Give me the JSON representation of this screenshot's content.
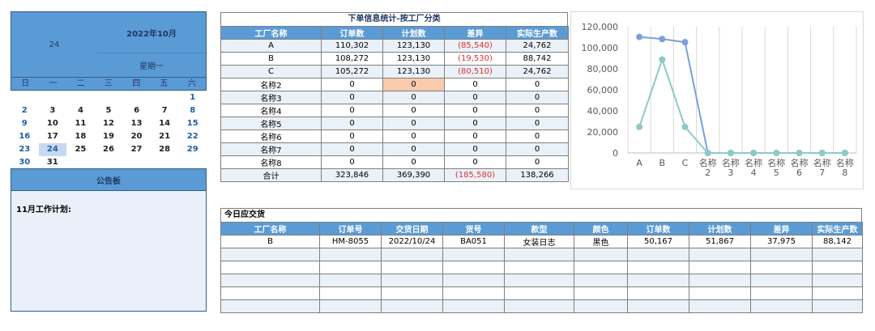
{
  "calendar": {
    "day": "24",
    "month_title": "2022年10月",
    "weekday": "星期一",
    "weekdays": [
      "日",
      "一",
      "二",
      "三",
      "四",
      "五",
      "六"
    ],
    "weeks": [
      [
        "",
        "",
        "",
        "",
        "",
        "",
        "1"
      ],
      [
        "2",
        "3",
        "4",
        "5",
        "6",
        "7",
        "8"
      ],
      [
        "9",
        "10",
        "11",
        "12",
        "13",
        "14",
        "15"
      ],
      [
        "16",
        "17",
        "18",
        "19",
        "20",
        "21",
        "22"
      ],
      [
        "23",
        "24",
        "25",
        "26",
        "27",
        "28",
        "29"
      ],
      [
        "30",
        "31",
        "",
        "",
        "",
        "",
        ""
      ]
    ],
    "today": "24"
  },
  "board": {
    "title": "公告板",
    "content": "11月工作计划:"
  },
  "stats_table": {
    "title": "下单信息统计-按工厂分类",
    "headers": [
      "工厂名称",
      "订单数",
      "计划数",
      "差异",
      "实际生产数"
    ],
    "rows": [
      [
        "A",
        "110,302",
        "123,130",
        "(85,540)",
        "24,762"
      ],
      [
        "B",
        "108,272",
        "123,130",
        "(19,530)",
        "88,742"
      ],
      [
        "C",
        "105,272",
        "123,130",
        "(80,510)",
        "24,762"
      ],
      [
        "名称2",
        "0",
        "0",
        "0",
        "0"
      ],
      [
        "名称3",
        "0",
        "0",
        "0",
        "0"
      ],
      [
        "名称4",
        "0",
        "0",
        "0",
        "0"
      ],
      [
        "名称5",
        "0",
        "0",
        "0",
        "0"
      ],
      [
        "名称6",
        "0",
        "0",
        "0",
        "0"
      ],
      [
        "名称7",
        "0",
        "0",
        "0",
        "0"
      ],
      [
        "名称8",
        "0",
        "0",
        "0",
        "0"
      ],
      [
        "合计",
        "323,846",
        "369,390",
        "(185,580)",
        "138,266"
      ]
    ]
  },
  "delivery_table": {
    "title": "今日应交货",
    "headers": [
      "工厂名称",
      "订单号",
      "交货日期",
      "货号",
      "款型",
      "颜色",
      "订单数",
      "计划数",
      "差异",
      "实际生产数"
    ],
    "rows": [
      [
        "B",
        "HM-8055",
        "2022/10/24",
        "BA051",
        "女装日志",
        "黑色",
        "50,167",
        "51,867",
        "37,975",
        "88,142"
      ],
      [
        "",
        "",
        "",
        "",
        "",
        "",
        "",
        "",
        "",
        ""
      ],
      [
        "",
        "",
        "",
        "",
        "",
        "",
        "",
        "",
        "",
        ""
      ],
      [
        "",
        "",
        "",
        "",
        "",
        "",
        "",
        "",
        "",
        ""
      ],
      [
        "",
        "",
        "",
        "",
        "",
        "",
        "",
        "",
        "",
        ""
      ],
      [
        "",
        "",
        "",
        "",
        "",
        "",
        "",
        "",
        "",
        ""
      ]
    ]
  },
  "chart_data": {
    "type": "line",
    "categories": [
      "A",
      "B",
      "C",
      "名称2",
      "名称3",
      "名称4",
      "名称5",
      "名称6",
      "名称7",
      "名称8"
    ],
    "series": [
      {
        "color": "#7b9fdc",
        "values": [
          110302,
          108272,
          105272,
          0,
          0,
          0,
          0,
          0,
          0,
          0
        ]
      },
      {
        "color": "#8ec9c8",
        "values": [
          24762,
          88742,
          24762,
          0,
          0,
          0,
          0,
          0,
          0,
          0
        ]
      }
    ],
    "ylim": [
      0,
      120000
    ],
    "yticks": [
      "0",
      "20,000",
      "40,000",
      "60,000",
      "80,000",
      "100,000",
      "120,000"
    ],
    "grid": "vertical"
  }
}
